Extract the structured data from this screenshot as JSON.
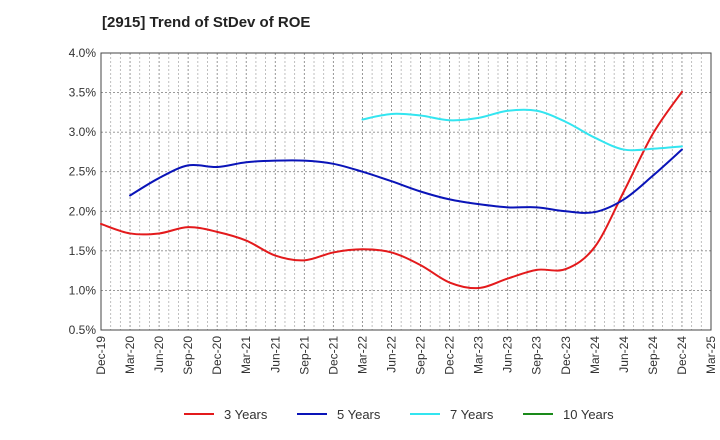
{
  "chart_data": {
    "type": "line",
    "title": "[2915]  Trend of StDev of ROE",
    "xlabel": "",
    "ylabel": "",
    "x_ticks": [
      "Dec-19",
      "Mar-20",
      "Jun-20",
      "Sep-20",
      "Dec-20",
      "Mar-21",
      "Jun-21",
      "Sep-21",
      "Dec-21",
      "Mar-22",
      "Jun-22",
      "Sep-22",
      "Dec-22",
      "Mar-23",
      "Jun-23",
      "Sep-23",
      "Dec-23",
      "Mar-24",
      "Jun-24",
      "Sep-24",
      "Dec-24",
      "Mar-25"
    ],
    "y_ticks": [
      "0.5%",
      "1.0%",
      "1.5%",
      "2.0%",
      "2.5%",
      "3.0%",
      "3.5%",
      "4.0%"
    ],
    "ylim": [
      0.5,
      4.0
    ],
    "y_unit": "%",
    "grid": true,
    "legend_position": "bottom",
    "series": [
      {
        "name": "3 Years",
        "color": "#e31a1c",
        "x": [
          "Dec-19",
          "Mar-20",
          "Jun-20",
          "Sep-20",
          "Dec-20",
          "Mar-21",
          "Jun-21",
          "Sep-21",
          "Dec-21",
          "Mar-22",
          "Jun-22",
          "Sep-22",
          "Dec-22",
          "Mar-23",
          "Jun-23",
          "Sep-23",
          "Dec-23",
          "Mar-24",
          "Jun-24",
          "Sep-24",
          "Dec-24"
        ],
        "values": [
          1.84,
          1.72,
          1.72,
          1.8,
          1.74,
          1.63,
          1.44,
          1.38,
          1.48,
          1.52,
          1.48,
          1.32,
          1.1,
          1.03,
          1.15,
          1.26,
          1.27,
          1.55,
          2.25,
          2.98,
          3.51
        ]
      },
      {
        "name": "5 Years",
        "color": "#0a14b8",
        "x": [
          "Mar-20",
          "Jun-20",
          "Sep-20",
          "Dec-20",
          "Mar-21",
          "Jun-21",
          "Sep-21",
          "Dec-21",
          "Mar-22",
          "Jun-22",
          "Sep-22",
          "Dec-22",
          "Mar-23",
          "Jun-23",
          "Sep-23",
          "Dec-23",
          "Mar-24",
          "Jun-24",
          "Sep-24",
          "Dec-24"
        ],
        "values": [
          2.2,
          2.42,
          2.58,
          2.56,
          2.62,
          2.64,
          2.64,
          2.6,
          2.5,
          2.38,
          2.25,
          2.15,
          2.09,
          2.05,
          2.05,
          2.0,
          1.99,
          2.15,
          2.45,
          2.78
        ]
      },
      {
        "name": "7 Years",
        "color": "#33e5f0",
        "x": [
          "Mar-22",
          "Jun-22",
          "Sep-22",
          "Dec-22",
          "Mar-23",
          "Jun-23",
          "Sep-23",
          "Dec-23",
          "Mar-24",
          "Jun-24",
          "Sep-24",
          "Dec-24"
        ],
        "values": [
          3.16,
          3.23,
          3.21,
          3.15,
          3.18,
          3.27,
          3.27,
          3.13,
          2.93,
          2.78,
          2.79,
          2.82
        ]
      },
      {
        "name": "10 Years",
        "color": "#1a8a1a",
        "x": [],
        "values": []
      }
    ]
  }
}
